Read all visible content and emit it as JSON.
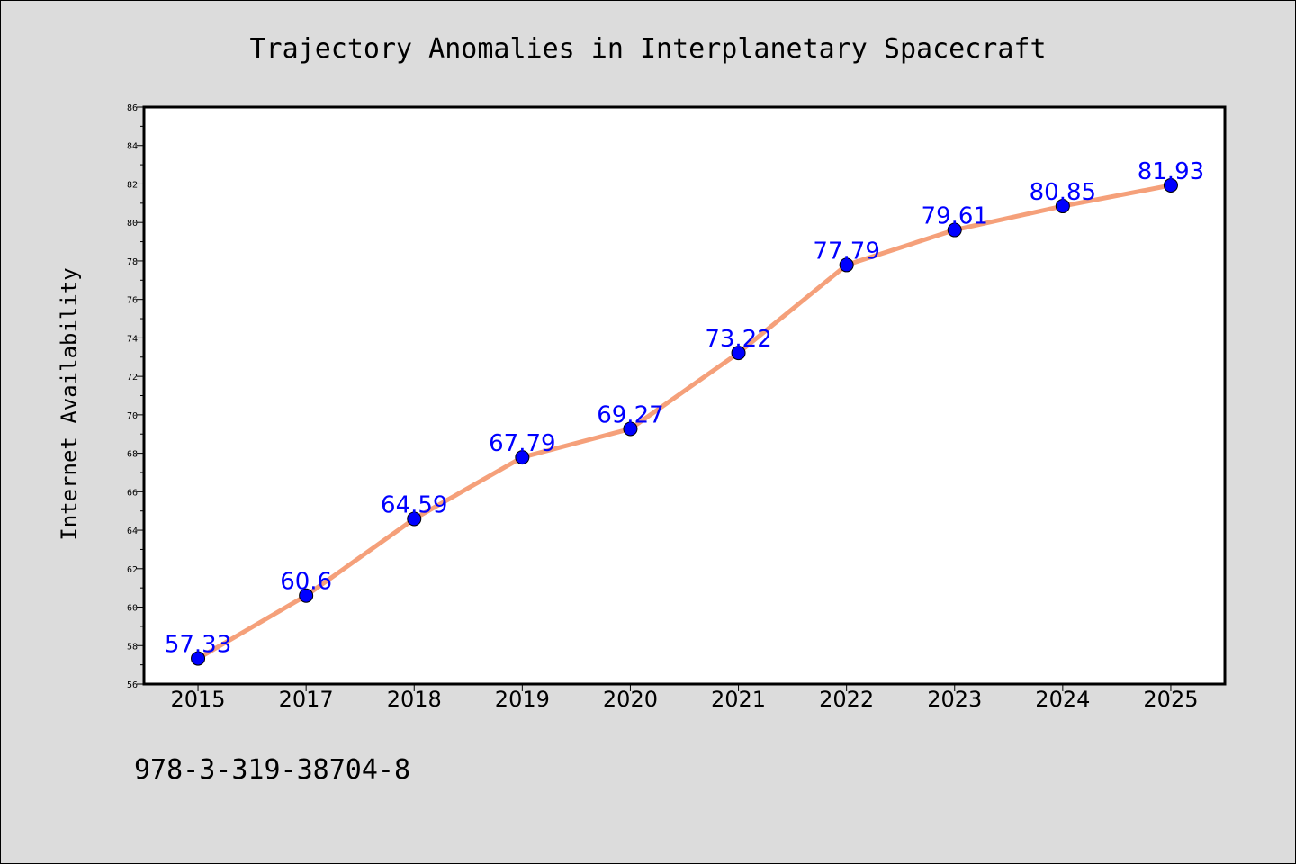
{
  "chart_data": {
    "type": "line",
    "title": "Trajectory Anomalies in Interplanetary Spacecraft",
    "xlabel": "",
    "ylabel": "Internet Availability",
    "categories": [
      "2015",
      "2017",
      "2018",
      "2019",
      "2020",
      "2021",
      "2022",
      "2023",
      "2024",
      "2025"
    ],
    "series": [
      {
        "values": [
          57.33,
          60.6,
          64.59,
          67.79,
          69.27,
          73.22,
          77.79,
          79.61,
          80.85,
          81.93
        ],
        "data_labels": [
          "57.33",
          "60.6",
          "64.59",
          "67.79",
          "69.27",
          "73.22",
          "77.79",
          "79.61",
          "80.85",
          "81.93"
        ]
      }
    ],
    "ylim": [
      56,
      86
    ],
    "yticks": [
      "56",
      "58",
      "60",
      "62",
      "64",
      "66",
      "68",
      "70",
      "72",
      "74",
      "76",
      "78",
      "80",
      "82",
      "84",
      "86"
    ],
    "grid": false,
    "legend": "none",
    "colors": {
      "line": "#f5a07a",
      "marker": "#0000ff",
      "data_label": "#0000ff",
      "plot_background": "#ffffff",
      "figure_background": "#dcdcdc"
    }
  },
  "footer": {
    "code": "978-3-319-38704-8"
  }
}
